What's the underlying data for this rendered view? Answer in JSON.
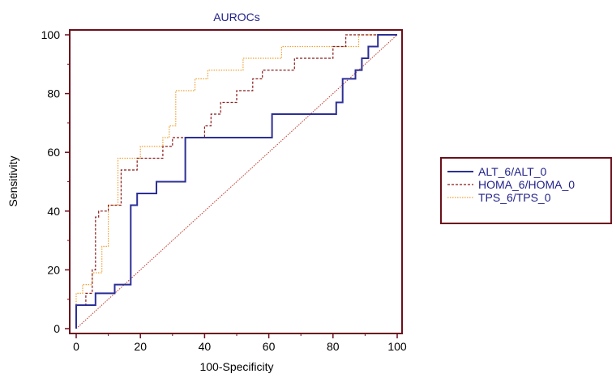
{
  "chart_data": {
    "type": "line",
    "title": "AUROCs",
    "xlabel": "100-Specificity",
    "ylabel": "Sensitivity",
    "xlim": [
      0,
      100
    ],
    "ylim": [
      0,
      100
    ],
    "xticks": [
      0,
      20,
      40,
      60,
      80,
      100
    ],
    "yticks": [
      0,
      20,
      40,
      60,
      80,
      100
    ],
    "legend_position": "right",
    "reference_line": {
      "x": [
        0,
        100
      ],
      "y": [
        0,
        100
      ],
      "color": "#c0392b"
    },
    "frame_color": "#6b0f1a",
    "series": [
      {
        "name": "ALT_6/ALT_0",
        "color": "#2b2f96",
        "style": "solid",
        "x": [
          0,
          0,
          6,
          6,
          9,
          9,
          12,
          12,
          17,
          17,
          19,
          19,
          25,
          25,
          30,
          30,
          34,
          34,
          61,
          61,
          81,
          81,
          83,
          83,
          85,
          85,
          87,
          87,
          89,
          89,
          91,
          91,
          93,
          93,
          94,
          94,
          100
        ],
        "y": [
          0,
          8,
          8,
          12,
          12,
          12,
          12,
          15,
          15,
          42,
          42,
          46,
          46,
          50,
          50,
          50,
          50,
          65,
          65,
          73,
          73,
          77,
          77,
          85,
          85,
          85,
          85,
          88,
          88,
          92,
          92,
          96,
          96,
          96,
          96,
          100,
          100
        ]
      },
      {
        "name": "HOMA_6/HOMA_0",
        "color": "#8b1a1a",
        "style": "dashed",
        "x": [
          0,
          0,
          3,
          3,
          5,
          5,
          6,
          6,
          7,
          7,
          10,
          10,
          14,
          14,
          19,
          19,
          27,
          27,
          30,
          30,
          33,
          33,
          40,
          40,
          42,
          42,
          45,
          45,
          50,
          50,
          55,
          55,
          58,
          58,
          63,
          63,
          68,
          68,
          74,
          74,
          80,
          80,
          84,
          84,
          90,
          90,
          100
        ],
        "y": [
          0,
          8,
          8,
          12,
          12,
          20,
          20,
          38,
          38,
          40,
          40,
          42,
          42,
          54,
          54,
          58,
          58,
          62,
          62,
          65,
          65,
          65,
          65,
          69,
          69,
          73,
          73,
          77,
          77,
          81,
          81,
          85,
          85,
          88,
          88,
          88,
          88,
          92,
          92,
          92,
          92,
          96,
          96,
          100,
          100,
          100,
          100
        ]
      },
      {
        "name": "TPS_6/TPS_0",
        "color": "#f0a030",
        "style": "dotted",
        "x": [
          0,
          0,
          2,
          2,
          5,
          5,
          8,
          8,
          10,
          10,
          13,
          13,
          20,
          20,
          27,
          27,
          29,
          29,
          31,
          31,
          34,
          34,
          37,
          37,
          41,
          41,
          47,
          47,
          52,
          52,
          57,
          57,
          64,
          64,
          69,
          69,
          75,
          75,
          88,
          88,
          94,
          94,
          100
        ],
        "y": [
          0,
          12,
          12,
          15,
          15,
          19,
          19,
          28,
          28,
          42,
          42,
          58,
          58,
          62,
          62,
          65,
          65,
          69,
          69,
          81,
          81,
          81,
          81,
          85,
          85,
          88,
          88,
          88,
          88,
          92,
          92,
          92,
          92,
          96,
          96,
          96,
          96,
          96,
          96,
          100,
          100,
          100,
          100
        ]
      }
    ]
  }
}
